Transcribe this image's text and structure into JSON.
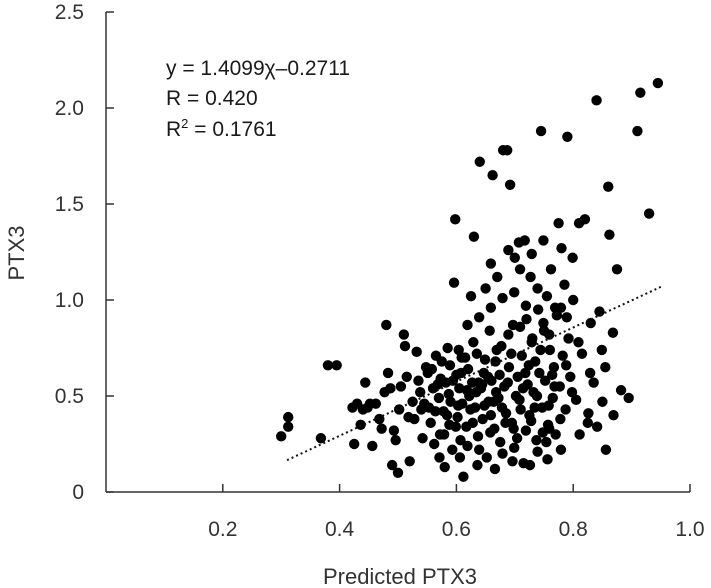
{
  "chart_data": {
    "type": "scatter",
    "title": "",
    "xlabel": "Predicted PTX3",
    "ylabel": "PTX3",
    "xlim": [
      0.0,
      1.0
    ],
    "ylim": [
      0.0,
      2.5
    ],
    "x_ticks": [
      "0.2",
      "0.4",
      "0.6",
      "0.8",
      "1.0"
    ],
    "x_tick_values": [
      0.2,
      0.4,
      0.6,
      0.8,
      1.0
    ],
    "y_ticks": [
      "0",
      "0.5",
      "1.0",
      "1.5",
      "2.0",
      "2.5"
    ],
    "y_tick_values": [
      0,
      0.5,
      1.0,
      1.5,
      2.0,
      2.5
    ],
    "grid": false,
    "legend": "none",
    "annotations": {
      "equation": "y = 1.4099χ–0.2711",
      "r": "R = 0.420",
      "r2_prefix": "R",
      "r2_exp": "2",
      "r2_value": " = 0.1761"
    },
    "trendline": {
      "slope": 1.4099,
      "intercept": -0.2711,
      "x_range": [
        0.31,
        0.95
      ],
      "style": "dotted"
    },
    "colors": {
      "points": "#000000",
      "axes": "#333333",
      "trendline": "#111111"
    },
    "points": [
      [
        0.3,
        0.29
      ],
      [
        0.312,
        0.34
      ],
      [
        0.312,
        0.39
      ],
      [
        0.368,
        0.28
      ],
      [
        0.38,
        0.66
      ],
      [
        0.395,
        0.66
      ],
      [
        0.422,
        0.44
      ],
      [
        0.425,
        0.25
      ],
      [
        0.43,
        0.46
      ],
      [
        0.436,
        0.35
      ],
      [
        0.44,
        0.43
      ],
      [
        0.444,
        0.57
      ],
      [
        0.448,
        0.44
      ],
      [
        0.452,
        0.46
      ],
      [
        0.456,
        0.24
      ],
      [
        0.462,
        0.46
      ],
      [
        0.468,
        0.38
      ],
      [
        0.472,
        0.33
      ],
      [
        0.477,
        0.52
      ],
      [
        0.48,
        0.87
      ],
      [
        0.483,
        0.62
      ],
      [
        0.487,
        0.54
      ],
      [
        0.49,
        0.14
      ],
      [
        0.493,
        0.32
      ],
      [
        0.496,
        0.27
      ],
      [
        0.5,
        0.1
      ],
      [
        0.502,
        0.43
      ],
      [
        0.505,
        0.55
      ],
      [
        0.51,
        0.82
      ],
      [
        0.512,
        0.76
      ],
      [
        0.515,
        0.6
      ],
      [
        0.518,
        0.39
      ],
      [
        0.52,
        0.16
      ],
      [
        0.525,
        0.47
      ],
      [
        0.528,
        0.38
      ],
      [
        0.532,
        0.73
      ],
      [
        0.535,
        0.58
      ],
      [
        0.538,
        0.52
      ],
      [
        0.542,
        0.28
      ],
      [
        0.545,
        0.46
      ],
      [
        0.548,
        0.65
      ],
      [
        0.551,
        0.62
      ],
      [
        0.553,
        0.44
      ],
      [
        0.556,
        0.36
      ],
      [
        0.56,
        0.54
      ],
      [
        0.562,
        0.25
      ],
      [
        0.565,
        0.71
      ],
      [
        0.568,
        0.56
      ],
      [
        0.57,
        0.49
      ],
      [
        0.572,
        0.3
      ],
      [
        0.575,
        0.68
      ],
      [
        0.578,
        0.42
      ],
      [
        0.58,
        0.13
      ],
      [
        0.582,
        0.57
      ],
      [
        0.585,
        0.75
      ],
      [
        0.588,
        0.35
      ],
      [
        0.59,
        0.47
      ],
      [
        0.593,
        0.22
      ],
      [
        0.596,
        1.09
      ],
      [
        0.598,
        1.42
      ],
      [
        0.6,
        0.61
      ],
      [
        0.602,
        0.39
      ],
      [
        0.605,
        0.54
      ],
      [
        0.607,
        0.27
      ],
      [
        0.61,
        0.46
      ],
      [
        0.612,
        0.08
      ],
      [
        0.615,
        0.7
      ],
      [
        0.617,
        0.34
      ],
      [
        0.62,
        0.64
      ],
      [
        0.622,
        0.5
      ],
      [
        0.625,
        1.02
      ],
      [
        0.627,
        0.57
      ],
      [
        0.63,
        1.33
      ],
      [
        0.632,
        0.44
      ],
      [
        0.635,
        0.72
      ],
      [
        0.637,
        0.29
      ],
      [
        0.64,
        1.72
      ],
      [
        0.642,
        0.54
      ],
      [
        0.645,
        0.38
      ],
      [
        0.647,
        0.62
      ],
      [
        0.65,
        1.06
      ],
      [
        0.652,
        0.18
      ],
      [
        0.655,
        0.47
      ],
      [
        0.657,
        0.84
      ],
      [
        0.66,
        0.58
      ],
      [
        0.662,
        1.65
      ],
      [
        0.665,
        0.33
      ],
      [
        0.667,
        0.68
      ],
      [
        0.67,
        1.12
      ],
      [
        0.672,
        0.49
      ],
      [
        0.675,
        0.26
      ],
      [
        0.677,
        0.76
      ],
      [
        0.68,
        1.78
      ],
      [
        0.682,
        0.55
      ],
      [
        0.685,
        0.41
      ],
      [
        0.687,
        1.78
      ],
      [
        0.69,
        0.65
      ],
      [
        0.692,
        1.6
      ],
      [
        0.695,
        0.36
      ],
      [
        0.697,
        0.87
      ],
      [
        0.7,
        1.22
      ],
      [
        0.702,
        0.5
      ],
      [
        0.705,
        0.6
      ],
      [
        0.707,
        1.3
      ],
      [
        0.71,
        0.43
      ],
      [
        0.712,
        0.71
      ],
      [
        0.715,
        0.15
      ],
      [
        0.717,
        1.31
      ],
      [
        0.72,
        0.9
      ],
      [
        0.722,
        0.56
      ],
      [
        0.725,
        0.4
      ],
      [
        0.727,
        1.12
      ],
      [
        0.73,
        0.8
      ],
      [
        0.732,
        0.52
      ],
      [
        0.735,
        0.68
      ],
      [
        0.737,
        0.27
      ],
      [
        0.74,
        0.95
      ],
      [
        0.742,
        0.62
      ],
      [
        0.745,
        1.88
      ],
      [
        0.747,
        0.44
      ],
      [
        0.75,
        0.84
      ],
      [
        0.752,
        0.58
      ],
      [
        0.755,
        1.02
      ],
      [
        0.757,
        0.35
      ],
      [
        0.76,
        0.74
      ],
      [
        0.762,
        1.16
      ],
      [
        0.765,
        0.49
      ],
      [
        0.767,
        0.65
      ],
      [
        0.77,
        0.3
      ],
      [
        0.772,
        0.92
      ],
      [
        0.775,
        1.4
      ],
      [
        0.777,
        0.55
      ],
      [
        0.78,
        1.27
      ],
      [
        0.782,
        0.71
      ],
      [
        0.785,
        1.08
      ],
      [
        0.787,
        0.43
      ],
      [
        0.79,
        1.85
      ],
      [
        0.792,
        0.8
      ],
      [
        0.795,
        0.6
      ],
      [
        0.8,
        1.0
      ],
      [
        0.805,
        0.48
      ],
      [
        0.81,
        1.4
      ],
      [
        0.815,
        0.72
      ],
      [
        0.82,
        1.42
      ],
      [
        0.825,
        0.36
      ],
      [
        0.83,
        0.88
      ],
      [
        0.835,
        0.57
      ],
      [
        0.84,
        2.04
      ],
      [
        0.845,
        0.94
      ],
      [
        0.85,
        0.47
      ],
      [
        0.855,
        0.65
      ],
      [
        0.86,
        1.59
      ],
      [
        0.862,
        1.34
      ],
      [
        0.868,
        0.83
      ],
      [
        0.875,
        1.16
      ],
      [
        0.882,
        0.53
      ],
      [
        0.895,
        0.49
      ],
      [
        0.91,
        1.88
      ],
      [
        0.915,
        2.08
      ],
      [
        0.93,
        1.45
      ],
      [
        0.945,
        2.13
      ],
      [
        0.54,
        0.43
      ],
      [
        0.558,
        0.64
      ],
      [
        0.573,
        0.59
      ],
      [
        0.587,
        0.51
      ],
      [
        0.603,
        0.45
      ],
      [
        0.618,
        0.53
      ],
      [
        0.628,
        0.36
      ],
      [
        0.638,
        0.57
      ],
      [
        0.648,
        0.45
      ],
      [
        0.658,
        0.31
      ],
      [
        0.668,
        0.52
      ],
      [
        0.678,
        0.44
      ],
      [
        0.688,
        0.57
      ],
      [
        0.698,
        0.33
      ],
      [
        0.708,
        0.48
      ],
      [
        0.718,
        0.62
      ],
      [
        0.728,
        0.37
      ],
      [
        0.738,
        0.5
      ],
      [
        0.748,
        0.31
      ],
      [
        0.758,
        0.45
      ],
      [
        0.768,
        0.55
      ],
      [
        0.778,
        0.38
      ],
      [
        0.788,
        0.66
      ],
      [
        0.798,
        0.52
      ],
      [
        0.564,
        0.42
      ],
      [
        0.594,
        0.58
      ],
      [
        0.608,
        0.62
      ],
      [
        0.624,
        0.43
      ],
      [
        0.634,
        0.52
      ],
      [
        0.644,
        0.56
      ],
      [
        0.654,
        0.6
      ],
      [
        0.664,
        0.47
      ],
      [
        0.674,
        0.61
      ],
      [
        0.684,
        0.36
      ],
      [
        0.694,
        0.72
      ],
      [
        0.704,
        0.28
      ],
      [
        0.714,
        0.54
      ],
      [
        0.724,
        0.66
      ],
      [
        0.734,
        0.44
      ],
      [
        0.744,
        0.74
      ],
      [
        0.754,
        0.26
      ],
      [
        0.764,
        0.61
      ],
      [
        0.579,
        0.3
      ],
      [
        0.599,
        0.34
      ],
      [
        0.619,
        0.24
      ],
      [
        0.639,
        0.22
      ],
      [
        0.659,
        0.4
      ],
      [
        0.679,
        0.2
      ],
      [
        0.699,
        0.23
      ],
      [
        0.719,
        0.32
      ],
      [
        0.739,
        0.21
      ],
      [
        0.759,
        0.33
      ],
      [
        0.779,
        0.22
      ],
      [
        0.589,
        0.66
      ],
      [
        0.609,
        0.7
      ],
      [
        0.629,
        0.78
      ],
      [
        0.649,
        0.69
      ],
      [
        0.669,
        0.74
      ],
      [
        0.689,
        0.82
      ],
      [
        0.709,
        0.86
      ],
      [
        0.729,
        0.78
      ],
      [
        0.749,
        0.88
      ],
      [
        0.769,
        0.96
      ],
      [
        0.789,
        0.91
      ],
      [
        0.809,
        0.78
      ],
      [
        0.829,
        0.62
      ],
      [
        0.849,
        0.74
      ],
      [
        0.869,
        0.4
      ],
      [
        0.659,
        0.96
      ],
      [
        0.679,
        1.01
      ],
      [
        0.699,
        1.04
      ],
      [
        0.719,
        0.97
      ],
      [
        0.739,
        1.06
      ],
      [
        0.759,
        0.82
      ],
      [
        0.779,
        0.96
      ],
      [
        0.799,
        1.22
      ],
      [
        0.659,
        1.19
      ],
      [
        0.689,
        1.26
      ],
      [
        0.709,
        1.16
      ],
      [
        0.729,
        1.24
      ],
      [
        0.749,
        1.31
      ],
      [
        0.639,
        0.91
      ],
      [
        0.619,
        0.87
      ],
      [
        0.604,
        0.74
      ],
      [
        0.584,
        0.4
      ],
      [
        0.571,
        0.18
      ],
      [
        0.606,
        0.18
      ],
      [
        0.636,
        0.14
      ],
      [
        0.666,
        0.12
      ],
      [
        0.696,
        0.16
      ],
      [
        0.726,
        0.14
      ],
      [
        0.756,
        0.17
      ],
      [
        0.811,
        0.3
      ],
      [
        0.826,
        0.41
      ],
      [
        0.841,
        0.34
      ],
      [
        0.856,
        0.22
      ]
    ]
  }
}
